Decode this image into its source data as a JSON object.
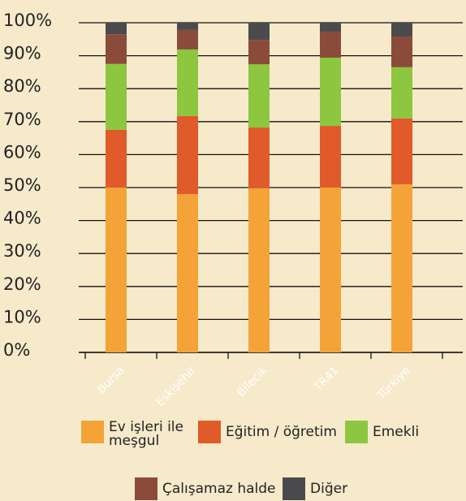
{
  "chart_data": {
    "type": "stacked_bar",
    "categories": [
      "Bursa",
      "Eskişehir",
      "Bilecik",
      "TR41",
      "Türkiye"
    ],
    "series": [
      {
        "name": "Ev işleri ile meşgul",
        "color": "#f4a338",
        "values": [
          50,
          48,
          49.8,
          50,
          51
        ]
      },
      {
        "name": "Eğitim / öğretim",
        "color": "#e05a2a",
        "values": [
          17.5,
          23.7,
          18.4,
          18.7,
          20
        ]
      },
      {
        "name": "Emekli",
        "color": "#8dc63f",
        "values": [
          20,
          20.2,
          19.2,
          20.7,
          15.5
        ]
      },
      {
        "name": "Çalışamaz halde",
        "color": "#8b4b3b",
        "values": [
          9,
          5.9,
          7.4,
          7.9,
          9.3
        ]
      },
      {
        "name": "Diğer",
        "color": "#4b4b4d",
        "values": [
          3.5,
          2.2,
          5.2,
          2.7,
          4.2
        ]
      }
    ],
    "ylim": [
      0,
      100
    ],
    "yticks": [
      {
        "value": 0,
        "label": "0%"
      },
      {
        "value": 10,
        "label": "10%"
      },
      {
        "value": 20,
        "label": "20%"
      },
      {
        "value": 30,
        "label": "30%"
      },
      {
        "value": 40,
        "label": "40%"
      },
      {
        "value": 50,
        "label": "50%"
      },
      {
        "value": 60,
        "label": "60%"
      },
      {
        "value": 70,
        "label": "70%"
      },
      {
        "value": 80,
        "label": "80%"
      },
      {
        "value": 90,
        "label": "90%"
      },
      {
        "value": 100,
        "label": "100%"
      }
    ],
    "grid": true
  }
}
